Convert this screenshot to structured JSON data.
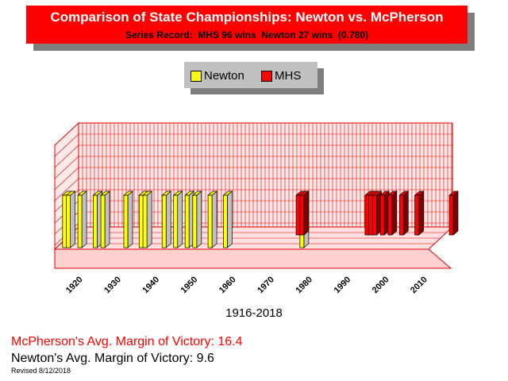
{
  "header": {
    "title": "Comparison of State Championships: Newton vs. McPherson",
    "subtitle": "Series Record:  MHS 96 wins  Newton 27 wins  (0.780)"
  },
  "legend": {
    "items": [
      {
        "label": "Newton",
        "color": "#ffff00"
      },
      {
        "label": "MHS",
        "color": "#ff0000"
      }
    ]
  },
  "chart_data": {
    "type": "bar",
    "xlabel": "1916-2018",
    "ylabel": "",
    "grid": true,
    "legend_placement": "top-center",
    "x_tick_labels": [
      "1920",
      "1930",
      "1940",
      "1950",
      "1960",
      "1970",
      "1980",
      "1990",
      "2000",
      "2010"
    ],
    "xlim": [
      1916,
      2018
    ],
    "series": [
      {
        "name": "Newton",
        "color": "#ffff00",
        "years": [
          1917,
          1918,
          1921,
          1925,
          1927,
          1933,
          1937,
          1938,
          1943,
          1946,
          1949,
          1951,
          1955,
          1959,
          1979
        ]
      },
      {
        "name": "MHS",
        "color": "#ff0000",
        "years": [
          1978,
          1979,
          1996,
          1997,
          1998,
          2000,
          2002,
          2005,
          2009,
          2018
        ]
      }
    ]
  },
  "footer": {
    "mhs_margin": "McPherson's Avg. Margin of Victory: 16.4",
    "newton_margin": "Newton's Avg. Margin of Victory: 9.6",
    "revised": "Revised 8/12/2018"
  }
}
